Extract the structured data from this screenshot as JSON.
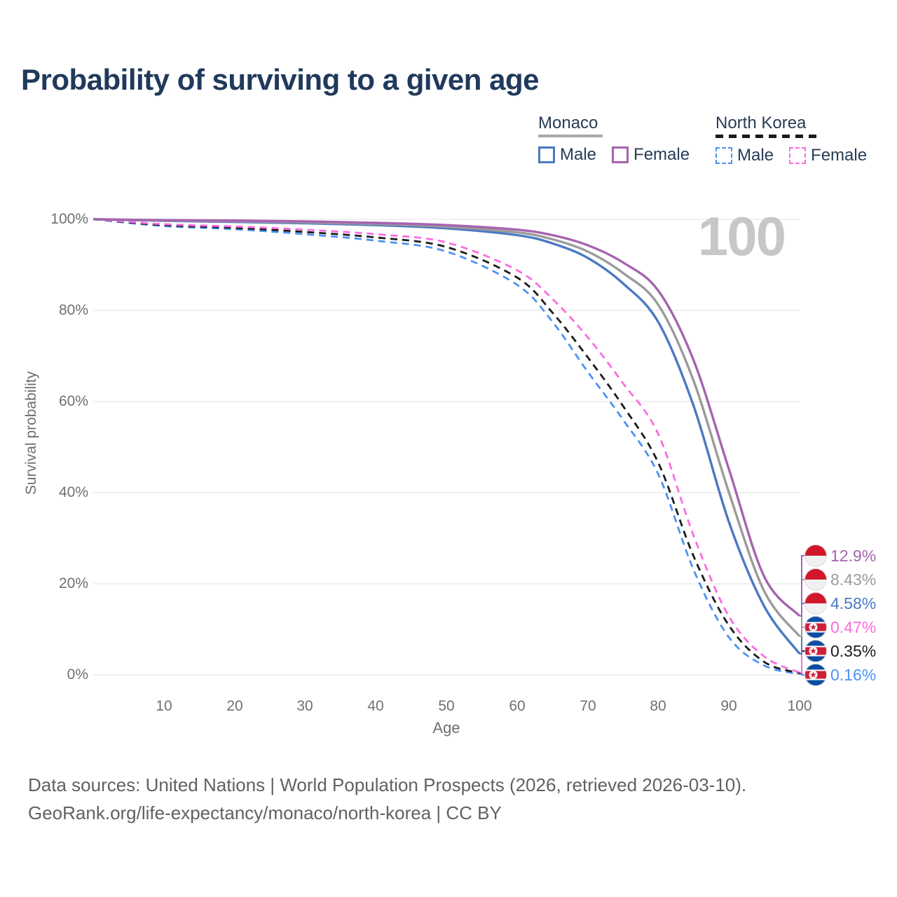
{
  "title": "Probability of surviving to a given age",
  "legend": {
    "groups": [
      {
        "name": "Monaco",
        "line_color": "#a8a8a8",
        "line_dash": false,
        "items": [
          {
            "label": "Male",
            "color": "#4b79c3",
            "dash": false
          },
          {
            "label": "Female",
            "color": "#a763b0",
            "dash": false
          }
        ]
      },
      {
        "name": "North Korea",
        "line_color": "#1b1b1b",
        "line_dash": true,
        "items": [
          {
            "label": "Male",
            "color": "#4b93f3",
            "dash": true
          },
          {
            "label": "Female",
            "color": "#fb6cdf",
            "dash": true
          }
        ]
      }
    ]
  },
  "watermark": "100",
  "footer": {
    "line1": "Data sources: United Nations | World Population Prospects (2026, retrieved 2026-03-10).",
    "line2": "GeoRank.org/life-expectancy/monaco/north-korea | CC BY"
  },
  "chart_data": {
    "type": "line",
    "title": "Probability of surviving to a given age",
    "xlabel": "Age",
    "ylabel": "Survival probability",
    "xlim": [
      0,
      100
    ],
    "ylim": [
      0,
      100
    ],
    "grid": "horizontal",
    "hover_age_label": "100",
    "x_ticks": [
      "10",
      "20",
      "30",
      "40",
      "50",
      "60",
      "70",
      "80",
      "90",
      "100"
    ],
    "y_ticks": [
      "100%",
      "80%",
      "60%",
      "40%",
      "20%",
      "0%"
    ],
    "x": [
      0,
      10,
      20,
      30,
      40,
      50,
      60,
      65,
      70,
      75,
      80,
      85,
      90,
      95,
      100
    ],
    "series": [
      {
        "id": "nk-male",
        "country": "North Korea",
        "sex": "Male",
        "color": "#4b93f3",
        "dash": true,
        "label_slot": 5,
        "end_label": "0.16%",
        "flag": "kp",
        "values": [
          100,
          98.5,
          97.8,
          96.7,
          95.3,
          92.9,
          85.6,
          77.5,
          66.5,
          56.0,
          44.0,
          23.0,
          8.2,
          2.0,
          0.16
        ]
      },
      {
        "id": "nk-both",
        "country": "North Korea",
        "sex": "Both sexes",
        "color": "#1b1b1b",
        "dash": true,
        "label_slot": 4,
        "end_label": "0.35%",
        "flag": "kp",
        "values": [
          100,
          98.7,
          98.1,
          97.2,
          96.0,
          93.9,
          87.2,
          79.5,
          69.7,
          59.0,
          46.5,
          26.0,
          10.8,
          2.8,
          0.35
        ]
      },
      {
        "id": "nk-female",
        "country": "North Korea",
        "sex": "Female",
        "color": "#fb6cdf",
        "dash": true,
        "label_slot": 3,
        "end_label": "0.47%",
        "flag": "kp",
        "values": [
          100,
          98.9,
          98.4,
          97.7,
          96.7,
          94.9,
          88.8,
          82.5,
          74.1,
          64.0,
          52.8,
          30.5,
          12.8,
          4.0,
          0.47
        ]
      },
      {
        "id": "monaco-male",
        "country": "Monaco",
        "sex": "Male",
        "color": "#4b79c3",
        "dash": false,
        "label_slot": 2,
        "end_label": "4.58%",
        "flag": "mc",
        "values": [
          100,
          99.65,
          99.4,
          99.1,
          98.7,
          98.0,
          96.5,
          94.7,
          91.5,
          85.9,
          77.4,
          59.0,
          33.5,
          15.0,
          4.58
        ]
      },
      {
        "id": "monaco-both",
        "country": "Monaco",
        "sex": "Both sexes",
        "color": "#9b9b9b",
        "dash": false,
        "label_slot": 1,
        "end_label": "8.43%",
        "flag": "mc",
        "values": [
          100,
          99.7,
          99.55,
          99.3,
          98.95,
          98.35,
          97.1,
          95.6,
          92.9,
          88.2,
          81.2,
          64.5,
          40.0,
          18.3,
          8.43
        ]
      },
      {
        "id": "monaco-female",
        "country": "Monaco",
        "sex": "Female",
        "color": "#a763b0",
        "dash": false,
        "label_slot": 0,
        "end_label": "12.9%",
        "flag": "mc",
        "values": [
          100,
          99.8,
          99.7,
          99.5,
          99.2,
          98.7,
          97.7,
          96.5,
          94.3,
          90.5,
          84.3,
          69.0,
          45.1,
          21.5,
          12.9
        ]
      }
    ]
  }
}
